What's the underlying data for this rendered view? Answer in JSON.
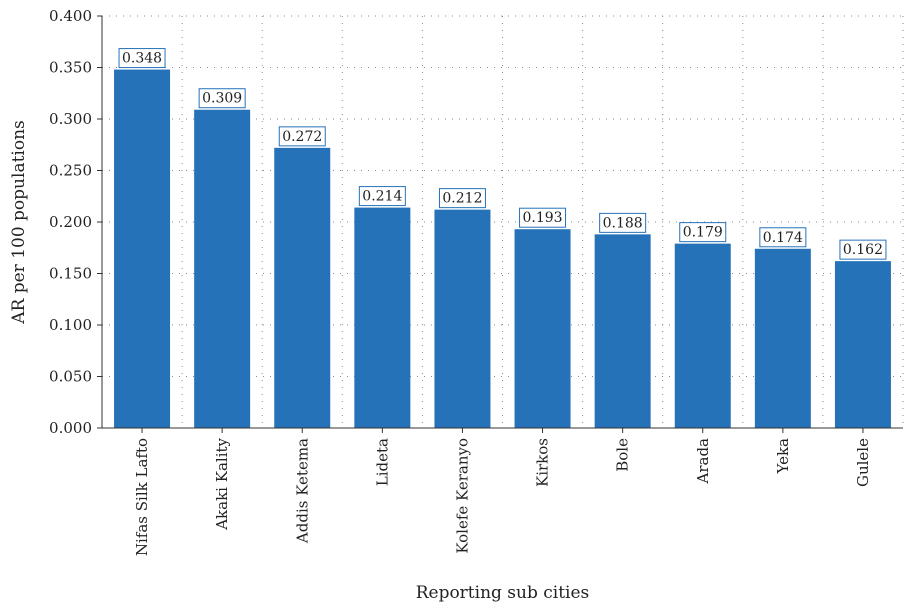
{
  "chart_data": {
    "type": "bar",
    "categories": [
      "Nifas Silk Lafto",
      "Akaki Kality",
      "Addis Ketema",
      "Lideta",
      "Kolefe Keranyo",
      "Kirkos",
      "Bole",
      "Arada",
      "Yeka",
      "Gulele"
    ],
    "values": [
      0.348,
      0.309,
      0.272,
      0.214,
      0.212,
      0.193,
      0.188,
      0.179,
      0.174,
      0.162
    ],
    "value_labels": [
      "0.348",
      "0.309",
      "0.272",
      "0.214",
      "0.212",
      "0.193",
      "0.188",
      "0.179",
      "0.174",
      "0.162"
    ],
    "xlabel": "Reporting sub cities",
    "ylabel": "AR per 100 populations",
    "ylim": [
      0,
      0.4
    ],
    "yticks": [
      0,
      0.05,
      0.1,
      0.15,
      0.2,
      0.25,
      0.3,
      0.35,
      0.4
    ],
    "ytick_labels": [
      "0.000",
      "0.050",
      "0.100",
      "0.150",
      "0.200",
      "0.250",
      "0.300",
      "0.350",
      "0.400"
    ],
    "grid": true,
    "legend": "none",
    "colors": {
      "bar": "#2672b9",
      "label_border": "#2672b9"
    }
  }
}
